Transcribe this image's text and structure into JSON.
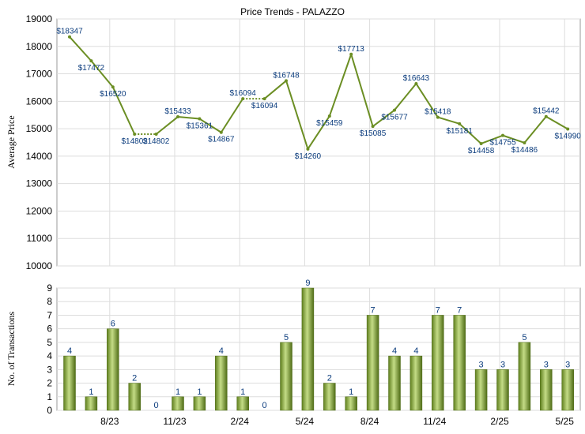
{
  "chart_data": [
    {
      "type": "line",
      "title": "Price Trends - PALAZZO",
      "ylabel": "Average Price",
      "ylim": [
        10000,
        19000
      ],
      "yticks": [
        "10000",
        "11000",
        "12000",
        "13000",
        "14000",
        "15000",
        "16000",
        "17000",
        "18000",
        "19000"
      ],
      "grid": true,
      "series": [
        {
          "color": "#6b8e23",
          "values": [
            18347,
            17472,
            16520,
            14802,
            14802,
            15433,
            15361,
            14867,
            16094,
            16094,
            16748,
            14260,
            15459,
            17713,
            15085,
            15677,
            16643,
            15418,
            15181,
            14458,
            14755,
            14486,
            15442,
            14990
          ],
          "labels": [
            "$18347",
            "$17472",
            "$16520",
            "$14802",
            "$14802",
            "$15433",
            "$15361",
            "$14867",
            "$16094",
            "$16094",
            "$16748",
            "$14260",
            "$15459",
            "$17713",
            "$15085",
            "$15677",
            "$16643",
            "$15418",
            "$15181",
            "$14458",
            "$14755",
            "$14486",
            "$15442",
            "$14990"
          ],
          "interpolated": [
            false,
            false,
            false,
            false,
            true,
            false,
            false,
            false,
            false,
            true,
            false,
            false,
            false,
            false,
            false,
            false,
            false,
            false,
            false,
            false,
            false,
            false,
            false,
            false
          ]
        }
      ]
    },
    {
      "type": "bar",
      "ylabel": "No. of Transactions",
      "ylim": [
        0,
        9
      ],
      "yticks": [
        "0",
        "1",
        "2",
        "3",
        "4",
        "5",
        "6",
        "7",
        "8",
        "9"
      ],
      "grid": true,
      "xticks": [
        "8/23",
        "11/23",
        "2/24",
        "5/24",
        "8/24",
        "11/24",
        "2/25",
        "5/25"
      ],
      "series": [
        {
          "color": "#7a9a2e",
          "values": [
            4,
            1,
            6,
            2,
            0,
            1,
            1,
            4,
            1,
            0,
            5,
            9,
            2,
            1,
            7,
            4,
            4,
            7,
            7,
            3,
            3,
            5,
            3,
            3
          ]
        }
      ]
    }
  ]
}
